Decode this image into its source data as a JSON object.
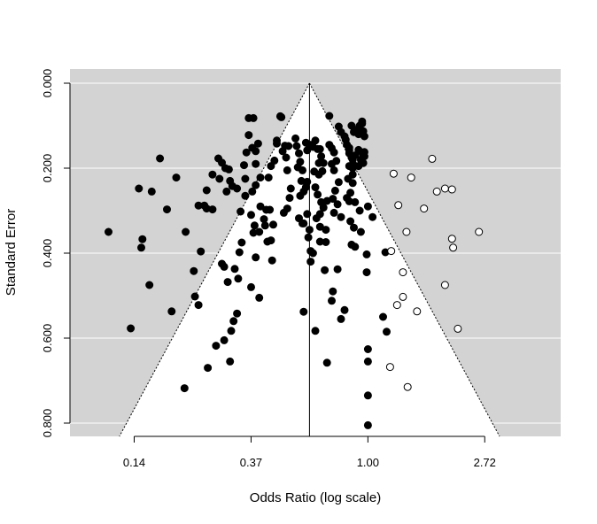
{
  "chart_data": {
    "type": "scatter",
    "subtype": "funnel plot (trim-and-fill)",
    "title": "",
    "xlabel": "Odds Ratio (log scale)",
    "ylabel": "Standard Error",
    "x_scale": "log",
    "x_ticks": [
      {
        "value": 0.1353,
        "label": "0.14"
      },
      {
        "value": 0.3679,
        "label": "0.37"
      },
      {
        "value": 1.0,
        "label": "1.00"
      },
      {
        "value": 2.7183,
        "label": "2.72"
      }
    ],
    "xlim_log": [
      -2.55,
      1.65
    ],
    "y_ticks": [
      {
        "value": 0.0,
        "label": "0.000"
      },
      {
        "value": 0.2,
        "label": "0.200"
      },
      {
        "value": 0.4,
        "label": "0.400"
      },
      {
        "value": 0.6,
        "label": "0.600"
      },
      {
        "value": 0.8,
        "label": "0.800"
      }
    ],
    "ylim": [
      0.0,
      0.83
    ],
    "y_reversed": true,
    "grid": "horizontal",
    "pooled_estimate_log": -0.5,
    "funnel_z": 1.96,
    "colors": {
      "background": "#d3d3d3",
      "funnel": "#ffffff",
      "observed": "#000000",
      "imputed": "#ffffff",
      "stroke": "#000000"
    },
    "series": [
      {
        "kind": "observed",
        "points": [
          [
            -2.22,
            0.35
          ],
          [
            -2.03,
            0.577
          ],
          [
            -1.94,
            0.387
          ],
          [
            -1.93,
            0.367
          ],
          [
            -1.96,
            0.248
          ],
          [
            -1.85,
            0.255
          ],
          [
            -1.87,
            0.475
          ],
          [
            -1.78,
            0.177
          ],
          [
            -1.72,
            0.297
          ],
          [
            -1.68,
            0.537
          ],
          [
            -1.64,
            0.222
          ],
          [
            -1.56,
            0.35
          ],
          [
            -1.57,
            0.718
          ],
          [
            -1.49,
            0.442
          ],
          [
            -1.48,
            0.502
          ],
          [
            -1.45,
            0.522
          ],
          [
            -1.45,
            0.288
          ],
          [
            -1.4,
            0.288
          ],
          [
            -1.38,
            0.295
          ],
          [
            -1.33,
            0.297
          ],
          [
            -1.43,
            0.396
          ],
          [
            -1.38,
            0.252
          ],
          [
            -1.37,
            0.67
          ],
          [
            -1.33,
            0.215
          ],
          [
            -1.28,
            0.177
          ],
          [
            -1.25,
            0.187
          ],
          [
            -1.22,
            0.2
          ],
          [
            -1.19,
            0.203
          ],
          [
            -1.3,
            0.618
          ],
          [
            -1.27,
            0.225
          ],
          [
            -1.23,
            0.605
          ],
          [
            -1.21,
            0.255
          ],
          [
            -1.18,
            0.23
          ],
          [
            -1.25,
            0.425
          ],
          [
            -1.23,
            0.432
          ],
          [
            -1.16,
            0.242
          ],
          [
            -1.12,
            0.248
          ],
          [
            -1.2,
            0.468
          ],
          [
            -1.17,
            0.583
          ],
          [
            -1.15,
            0.56
          ],
          [
            -1.12,
            0.542
          ],
          [
            -1.14,
            0.437
          ],
          [
            -1.11,
            0.46
          ],
          [
            -1.18,
            0.655
          ],
          [
            -1.0,
            0.48
          ],
          [
            -1.1,
            0.398
          ],
          [
            -1.08,
            0.375
          ],
          [
            -1.09,
            0.302
          ],
          [
            -1.05,
            0.265
          ],
          [
            -1.05,
            0.225
          ],
          [
            -1.06,
            0.193
          ],
          [
            -1.04,
            0.163
          ],
          [
            -1.02,
            0.122
          ],
          [
            -1.02,
            0.082
          ],
          [
            -0.98,
            0.082
          ],
          [
            -0.99,
            0.152
          ],
          [
            -0.96,
            0.16
          ],
          [
            -0.94,
            0.142
          ],
          [
            -0.96,
            0.19
          ],
          [
            -0.99,
            0.255
          ],
          [
            -0.92,
            0.222
          ],
          [
            -0.96,
            0.24
          ],
          [
            -1.0,
            0.31
          ],
          [
            -0.97,
            0.335
          ],
          [
            -0.93,
            0.35
          ],
          [
            -0.98,
            0.352
          ],
          [
            -0.96,
            0.41
          ],
          [
            -0.93,
            0.505
          ],
          [
            -0.92,
            0.29
          ],
          [
            -0.87,
            0.298
          ],
          [
            -0.89,
            0.32
          ],
          [
            -0.84,
            0.298
          ],
          [
            -0.81,
            0.333
          ],
          [
            -0.86,
            0.373
          ],
          [
            -0.83,
            0.37
          ],
          [
            -0.82,
            0.417
          ],
          [
            -0.88,
            0.335
          ],
          [
            -0.85,
            0.222
          ],
          [
            -0.83,
            0.195
          ],
          [
            -0.8,
            0.182
          ],
          [
            -0.78,
            0.135
          ],
          [
            -0.78,
            0.142
          ],
          [
            -0.75,
            0.078
          ],
          [
            -0.74,
            0.08
          ],
          [
            -0.71,
            0.147
          ],
          [
            -0.73,
            0.16
          ],
          [
            -0.7,
            0.175
          ],
          [
            -0.68,
            0.148
          ],
          [
            -0.69,
            0.205
          ],
          [
            -0.66,
            0.248
          ],
          [
            -0.67,
            0.27
          ],
          [
            -0.69,
            0.295
          ],
          [
            -0.72,
            0.305
          ],
          [
            -0.62,
            0.13
          ],
          [
            -0.61,
            0.148
          ],
          [
            -0.59,
            0.165
          ],
          [
            -0.58,
            0.185
          ],
          [
            -0.6,
            0.198
          ],
          [
            -0.56,
            0.205
          ],
          [
            -0.57,
            0.23
          ],
          [
            -0.53,
            0.245
          ],
          [
            -0.55,
            0.255
          ],
          [
            -0.52,
            0.232
          ],
          [
            -0.52,
            0.158
          ],
          [
            -0.53,
            0.14
          ],
          [
            -0.58,
            0.265
          ],
          [
            -0.59,
            0.318
          ],
          [
            -0.55,
            0.33
          ],
          [
            -0.56,
            0.33
          ],
          [
            -0.52,
            0.308
          ],
          [
            -0.5,
            0.345
          ],
          [
            -0.51,
            0.363
          ],
          [
            -0.49,
            0.395
          ],
          [
            -0.49,
            0.42
          ],
          [
            -0.47,
            0.4
          ],
          [
            -0.55,
            0.538
          ],
          [
            -0.45,
            0.583
          ],
          [
            -0.49,
            0.145
          ],
          [
            -0.47,
            0.15
          ],
          [
            -0.45,
            0.135
          ],
          [
            -0.43,
            0.155
          ],
          [
            -0.41,
            0.155
          ],
          [
            -0.4,
            0.172
          ],
          [
            -0.38,
            0.188
          ],
          [
            -0.39,
            0.207
          ],
          [
            -0.42,
            0.188
          ],
          [
            -0.46,
            0.208
          ],
          [
            -0.42,
            0.215
          ],
          [
            -0.45,
            0.245
          ],
          [
            -0.43,
            0.262
          ],
          [
            -0.4,
            0.28
          ],
          [
            -0.35,
            0.277
          ],
          [
            -0.38,
            0.293
          ],
          [
            -0.41,
            0.308
          ],
          [
            -0.44,
            0.318
          ],
          [
            -0.41,
            0.338
          ],
          [
            -0.36,
            0.345
          ],
          [
            -0.41,
            0.373
          ],
          [
            -0.36,
            0.374
          ],
          [
            -0.37,
            0.44
          ],
          [
            -0.33,
            0.077
          ],
          [
            -0.33,
            0.145
          ],
          [
            -0.31,
            0.153
          ],
          [
            -0.29,
            0.163
          ],
          [
            -0.27,
            0.183
          ],
          [
            -0.31,
            0.19
          ],
          [
            -0.29,
            0.205
          ],
          [
            -0.25,
            0.233
          ],
          [
            -0.28,
            0.253
          ],
          [
            -0.3,
            0.272
          ],
          [
            -0.26,
            0.285
          ],
          [
            -0.29,
            0.305
          ],
          [
            -0.23,
            0.315
          ],
          [
            -0.35,
            0.658
          ],
          [
            -0.26,
            0.438
          ],
          [
            -0.3,
            0.49
          ],
          [
            -0.31,
            0.512
          ],
          [
            -0.23,
            0.555
          ],
          [
            -0.2,
            0.534
          ],
          [
            -0.25,
            0.102
          ],
          [
            -0.23,
            0.115
          ],
          [
            -0.2,
            0.125
          ],
          [
            -0.19,
            0.133
          ],
          [
            -0.18,
            0.145
          ],
          [
            -0.16,
            0.152
          ],
          [
            -0.16,
            0.158
          ],
          [
            -0.16,
            0.165
          ],
          [
            -0.14,
            0.175
          ],
          [
            -0.13,
            0.18
          ],
          [
            -0.12,
            0.193
          ],
          [
            -0.16,
            0.195
          ],
          [
            -0.13,
            0.215
          ],
          [
            -0.17,
            0.225
          ],
          [
            -0.13,
            0.235
          ],
          [
            -0.15,
            0.258
          ],
          [
            -0.18,
            0.27
          ],
          [
            -0.16,
            0.278
          ],
          [
            -0.11,
            0.28
          ],
          [
            -0.15,
            0.325
          ],
          [
            -0.12,
            0.34
          ],
          [
            -0.14,
            0.38
          ],
          [
            -0.11,
            0.385
          ],
          [
            -0.14,
            0.1
          ],
          [
            -0.12,
            0.115
          ],
          [
            -0.1,
            0.11
          ],
          [
            -0.08,
            0.12
          ],
          [
            -0.07,
            0.1
          ],
          [
            -0.05,
            0.09
          ],
          [
            -0.05,
            0.095
          ],
          [
            -0.04,
            0.113
          ],
          [
            -0.03,
            0.125
          ],
          [
            -0.03,
            0.162
          ],
          [
            -0.06,
            0.18
          ],
          [
            -0.08,
            0.195
          ],
          [
            -0.11,
            0.17
          ],
          [
            -0.08,
            0.157
          ],
          [
            -0.05,
            0.163
          ],
          [
            -0.04,
            0.188
          ],
          [
            -0.04,
            0.17
          ],
          [
            -0.03,
            0.172
          ],
          [
            -0.13,
            0.2
          ],
          [
            -0.07,
            0.3
          ],
          [
            -0.06,
            0.35
          ],
          [
            0.0,
            0.29
          ],
          [
            0.04,
            0.315
          ],
          [
            -0.01,
            0.403
          ],
          [
            -0.01,
            0.445
          ],
          [
            0.0,
            0.626
          ],
          [
            0.0,
            0.655
          ],
          [
            0.0,
            0.735
          ],
          [
            0.0,
            0.805
          ],
          [
            0.15,
            0.398
          ],
          [
            0.13,
            0.55
          ],
          [
            0.16,
            0.585
          ]
        ]
      },
      {
        "kind": "imputed",
        "points": [
          [
            0.22,
            0.213
          ],
          [
            0.37,
            0.222
          ],
          [
            0.55,
            0.178
          ],
          [
            0.66,
            0.248
          ],
          [
            0.72,
            0.25
          ],
          [
            0.59,
            0.255
          ],
          [
            0.26,
            0.287
          ],
          [
            0.48,
            0.295
          ],
          [
            0.33,
            0.35
          ],
          [
            0.95,
            0.35
          ],
          [
            0.72,
            0.366
          ],
          [
            0.73,
            0.387
          ],
          [
            0.2,
            0.395
          ],
          [
            0.3,
            0.445
          ],
          [
            0.66,
            0.475
          ],
          [
            0.3,
            0.503
          ],
          [
            0.25,
            0.522
          ],
          [
            0.42,
            0.537
          ],
          [
            0.77,
            0.578
          ],
          [
            0.19,
            0.668
          ],
          [
            0.34,
            0.715
          ]
        ]
      }
    ]
  }
}
